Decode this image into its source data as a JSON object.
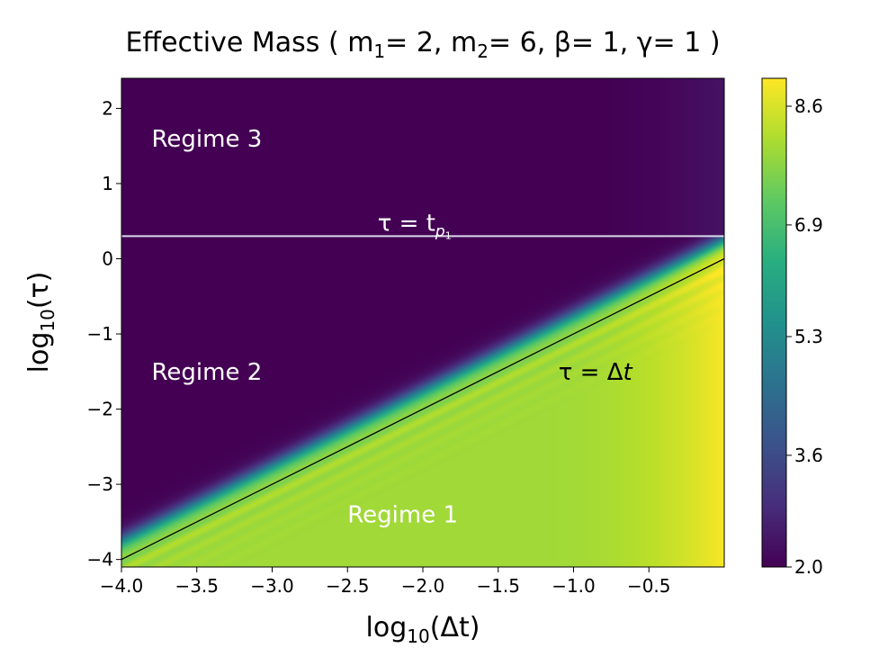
{
  "chart_data": {
    "type": "heatmap",
    "title": {
      "prefix": "Effective Mass ( m",
      "sub1": "1",
      "mid1": "= 2, m",
      "sub2": "2",
      "rest": "= 6, β= 1, γ= 1 )"
    },
    "xlabel": {
      "base": "log",
      "sub": "10",
      "rest": "(Δt)"
    },
    "ylabel": {
      "base": "log",
      "sub": "10",
      "rest": "(τ)"
    },
    "xlim": [
      -4.0,
      0.0
    ],
    "ylim": [
      -4.1,
      2.4
    ],
    "x_ticks": [
      -4.0,
      -3.5,
      -3.0,
      -2.5,
      -2.0,
      -1.5,
      -1.0,
      -0.5
    ],
    "x_tick_labels": [
      "−4.0",
      "−3.5",
      "−3.0",
      "−2.5",
      "−2.0",
      "−1.5",
      "−1.0",
      "−0.5"
    ],
    "y_ticks": [
      2,
      1,
      0,
      -1,
      -2,
      -3,
      -4
    ],
    "y_tick_labels": [
      "2",
      "1",
      "0",
      "−1",
      "−2",
      "−3",
      "−4"
    ],
    "colorbar": {
      "min": 2.0,
      "max": 9.0,
      "ticks": [
        8.6,
        6.9,
        5.3,
        3.6,
        2.0
      ],
      "tick_labels": [
        "8.6",
        "6.9",
        "5.3",
        "3.6",
        "2.0"
      ],
      "colormap": "viridis"
    },
    "reference_lines": [
      {
        "name": "tau-equals-tp1",
        "kind": "horizontal",
        "y": 0.3,
        "color": "#d8d8e8"
      },
      {
        "name": "tau-equals-dt",
        "kind": "diagonal",
        "x": [
          -4.0,
          0.0
        ],
        "y": [
          -4.0,
          0.0
        ],
        "color": "#000000"
      }
    ],
    "annotations": [
      {
        "name": "regime-3-label",
        "text": "Regime 3",
        "x": -3.8,
        "y": 1.6,
        "color": "#ffffff"
      },
      {
        "name": "regime-2-label",
        "text": "Regime 2",
        "x": -3.8,
        "y": -1.5,
        "color": "#ffffff"
      },
      {
        "name": "regime-1-label",
        "text": "Regime 1",
        "x": -2.5,
        "y": -3.4,
        "color": "#ffffff"
      },
      {
        "name": "tau-tp1-label",
        "text_main": "τ = t",
        "text_sub": "p",
        "text_subsub": "1",
        "x": -2.3,
        "y": 0.48,
        "color": "#ffffff"
      },
      {
        "name": "tau-dt-label",
        "text_main": "τ = Δ",
        "text_ital": "t",
        "x": -1.1,
        "y": -1.5,
        "color": "#000000"
      }
    ],
    "regimes": {
      "low_value": 2.0,
      "high_value": 8.0,
      "right_edge_value": 8.95
    }
  }
}
